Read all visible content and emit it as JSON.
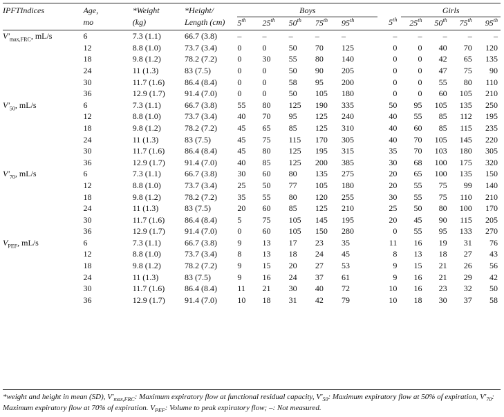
{
  "header": {
    "index_col": "IPFTIndices",
    "age_col": [
      "Age,",
      "mo"
    ],
    "weight_col": [
      "*Weight",
      "(kg)"
    ],
    "height_col": [
      "*Height/",
      "Length (cm)"
    ],
    "boys_label": "Boys",
    "girls_label": "Girls",
    "percentiles": [
      {
        "num": "5",
        "sup": "th"
      },
      {
        "num": "25",
        "sup": "th"
      },
      {
        "num": "50",
        "sup": "th"
      },
      {
        "num": "75",
        "sup": "th"
      },
      {
        "num": "95",
        "sup": "th"
      }
    ]
  },
  "sections": [
    {
      "label_main": "V'",
      "label_sub": "max,FRC",
      "label_tail": ", mL/s",
      "rows": [
        {
          "age": "6",
          "weight": "7.3 (1.1)",
          "height": "66.7 (3.8)",
          "boys": [
            "–",
            "–",
            "–",
            "–",
            "–"
          ],
          "girls": [
            "–",
            "–",
            "–",
            "–",
            "–"
          ]
        },
        {
          "age": "12",
          "weight": "8.8 (1.0)",
          "height": "73.7 (3.4)",
          "boys": [
            "0",
            "0",
            "50",
            "70",
            "125"
          ],
          "girls": [
            "0",
            "0",
            "40",
            "70",
            "120"
          ]
        },
        {
          "age": "18",
          "weight": "9.8 (1.2)",
          "height": "78.2 (7.2)",
          "boys": [
            "0",
            "30",
            "55",
            "80",
            "140"
          ],
          "girls": [
            "0",
            "0",
            "42",
            "65",
            "135"
          ]
        },
        {
          "age": "24",
          "weight": "11 (1.3)",
          "height": "83 (7.5)",
          "boys": [
            "0",
            "0",
            "50",
            "90",
            "205"
          ],
          "girls": [
            "0",
            "0",
            "47",
            "75",
            "90"
          ]
        },
        {
          "age": "30",
          "weight": "11.7 (1.6)",
          "height": "86.4 (8.4)",
          "boys": [
            "0",
            "0",
            "58",
            "95",
            "200"
          ],
          "girls": [
            "0",
            "0",
            "55",
            "80",
            "110"
          ]
        },
        {
          "age": "36",
          "weight": "12.9 (1.7)",
          "height": "91.4 (7.0)",
          "boys": [
            "0",
            "0",
            "50",
            "105",
            "180"
          ],
          "girls": [
            "0",
            "0",
            "60",
            "105",
            "210"
          ]
        }
      ]
    },
    {
      "label_main": "V'",
      "label_sub": "50",
      "label_tail": ", mL/s",
      "rows": [
        {
          "age": "6",
          "weight": "7.3 (1.1)",
          "height": "66.7 (3.8)",
          "boys": [
            "55",
            "80",
            "125",
            "190",
            "335"
          ],
          "girls": [
            "50",
            "95",
            "105",
            "135",
            "250"
          ]
        },
        {
          "age": "12",
          "weight": "8.8 (1.0)",
          "height": "73.7 (3.4)",
          "boys": [
            "40",
            "70",
            "95",
            "125",
            "240"
          ],
          "girls": [
            "40",
            "55",
            "85",
            "112",
            "195"
          ]
        },
        {
          "age": "18",
          "weight": "9.8 (1.2)",
          "height": "78.2 (7.2)",
          "boys": [
            "45",
            "65",
            "85",
            "125",
            "310"
          ],
          "girls": [
            "40",
            "60",
            "85",
            "115",
            "235"
          ]
        },
        {
          "age": "24",
          "weight": "11 (1.3)",
          "height": "83 (7.5)",
          "boys": [
            "45",
            "75",
            "115",
            "170",
            "305"
          ],
          "girls": [
            "40",
            "70",
            "105",
            "145",
            "220"
          ]
        },
        {
          "age": "30",
          "weight": "11.7 (1.6)",
          "height": "86.4 (8.4)",
          "boys": [
            "45",
            "80",
            "125",
            "195",
            "315"
          ],
          "girls": [
            "35",
            "70",
            "103",
            "180",
            "305"
          ]
        },
        {
          "age": "36",
          "weight": "12.9 (1.7)",
          "height": "91.4 (7.0)",
          "boys": [
            "40",
            "85",
            "125",
            "200",
            "385"
          ],
          "girls": [
            "30",
            "68",
            "100",
            "175",
            "320"
          ]
        }
      ]
    },
    {
      "label_main": "V'",
      "label_sub": "70",
      "label_tail": ", mL/s",
      "rows": [
        {
          "age": "6",
          "weight": "7.3 (1.1)",
          "height": "66.7 (3.8)",
          "boys": [
            "30",
            "60",
            "80",
            "135",
            "275"
          ],
          "girls": [
            "20",
            "65",
            "100",
            "135",
            "150"
          ]
        },
        {
          "age": "12",
          "weight": "8.8 (1.0)",
          "height": "73.7 (3.4)",
          "boys": [
            "25",
            "50",
            "77",
            "105",
            "180"
          ],
          "girls": [
            "20",
            "55",
            "75",
            "99",
            "140"
          ]
        },
        {
          "age": "18",
          "weight": "9.8 (1.2)",
          "height": "78.2 (7.2)",
          "boys": [
            "35",
            "55",
            "80",
            "120",
            "255"
          ],
          "girls": [
            "30",
            "55",
            "75",
            "110",
            "210"
          ]
        },
        {
          "age": "24",
          "weight": "11 (1.3)",
          "height": "83 (7.5)",
          "boys": [
            "20",
            "60",
            "85",
            "125",
            "210"
          ],
          "girls": [
            "25",
            "50",
            "80",
            "100",
            "170"
          ]
        },
        {
          "age": "30",
          "weight": "11.7 (1.6)",
          "height": "86.4 (8.4)",
          "boys": [
            "5",
            "75",
            "105",
            "145",
            "195"
          ],
          "girls": [
            "20",
            "45",
            "90",
            "115",
            "205"
          ]
        },
        {
          "age": "36",
          "weight": "12.9 (1.7)",
          "height": "91.4 (7.0)",
          "boys": [
            "0",
            "60",
            "105",
            "150",
            "280"
          ],
          "girls": [
            "0",
            "55",
            "95",
            "133",
            "270"
          ]
        }
      ]
    },
    {
      "label_main": "V",
      "label_sub": "PEF",
      "label_tail": ", mL/s",
      "rows": [
        {
          "age": "6",
          "weight": "7.3 (1.1)",
          "height": "66.7 (3.8)",
          "boys": [
            "9",
            "13",
            "17",
            "23",
            "35"
          ],
          "girls": [
            "11",
            "16",
            "19",
            "31",
            "76"
          ]
        },
        {
          "age": "12",
          "weight": "8.8 (1.0)",
          "height": "73.7 (3.4)",
          "boys": [
            "8",
            "13",
            "18",
            "24",
            "45"
          ],
          "girls": [
            "8",
            "13",
            "18",
            "27",
            "43"
          ]
        },
        {
          "age": "18",
          "weight": "9.8 (1.2)",
          "height": "78.2 (7.2)",
          "boys": [
            "9",
            "15",
            "20",
            "27",
            "53"
          ],
          "girls": [
            "9",
            "15",
            "21",
            "26",
            "56"
          ]
        },
        {
          "age": "24",
          "weight": "11 (1.3)",
          "height": "83 (7.5)",
          "boys": [
            "9",
            "16",
            "24",
            "37",
            "61"
          ],
          "girls": [
            "9",
            "16",
            "21",
            "29",
            "42"
          ]
        },
        {
          "age": "30",
          "weight": "11.7 (1.6)",
          "height": "86.4 (8.4)",
          "boys": [
            "11",
            "21",
            "30",
            "40",
            "72"
          ],
          "girls": [
            "10",
            "16",
            "23",
            "32",
            "50"
          ]
        },
        {
          "age": "36",
          "weight": "12.9 (1.7)",
          "height": "91.4 (7.0)",
          "boys": [
            "10",
            "18",
            "31",
            "42",
            "79"
          ],
          "girls": [
            "10",
            "18",
            "30",
            "37",
            "58"
          ]
        }
      ]
    }
  ],
  "footnote": {
    "p1": "*weight and height in mean (SD), ",
    "v1": "V'",
    "v1sub": "max,FRC",
    "p2": ": Maximum expiratory flow at functional residual capacity, ",
    "v2": "V'",
    "v2sub": "50",
    "p3": ": Maximum expiratory flow at 50% of expiration, ",
    "v3": "V'",
    "v3sub": "70",
    "p4": ": Maximum expiratory flow at 70% of expiration. ",
    "v4": "V",
    "v4sub": "PEF",
    "p5": ": Volume to peak expiratory flow; –: Not measured."
  }
}
